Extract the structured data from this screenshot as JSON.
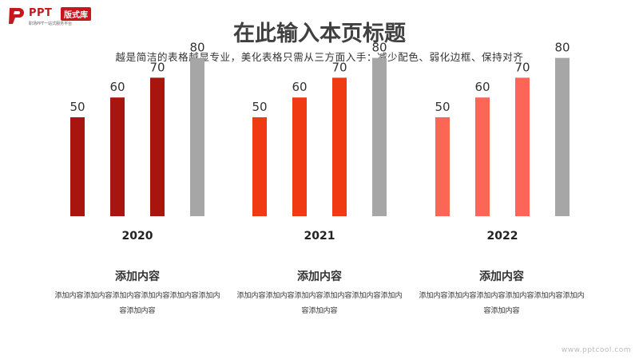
{
  "logo": {
    "ppt": "PPT",
    "badge": "版式库",
    "tagline": "职场PPT一站式服务平台"
  },
  "header": {
    "title": "在此输入本页标题",
    "subtitle": "越是简洁的表格越显专业，美化表格只需从三方面入手：减少配色、弱化边框、保持对齐"
  },
  "chart_data": [
    {
      "type": "bar",
      "xlabel": "2020",
      "values": [
        50,
        60,
        70,
        80
      ],
      "ylim": [
        0,
        100
      ],
      "colors": [
        "#a8150f",
        "#a8150f",
        "#a8150f",
        "#a6a6a6"
      ]
    },
    {
      "type": "bar",
      "xlabel": "2021",
      "values": [
        50,
        60,
        70,
        80
      ],
      "ylim": [
        0,
        100
      ],
      "colors": [
        "#f03a12",
        "#f03a12",
        "#f03a12",
        "#a6a6a6"
      ]
    },
    {
      "type": "bar",
      "xlabel": "2022",
      "values": [
        50,
        60,
        70,
        80
      ],
      "ylim": [
        0,
        100
      ],
      "colors": [
        "#fb6656",
        "#fb6656",
        "#fb6656",
        "#a6a6a6"
      ]
    }
  ],
  "blocks": [
    {
      "title": "添加内容",
      "desc": "添加内容添加内容添加内容添加内容添加内容添加内容添加内容"
    },
    {
      "title": "添加内容",
      "desc": "添加内容添加内容添加内容添加内容添加内容添加内容添加内容"
    },
    {
      "title": "添加内容",
      "desc": "添加内容添加内容添加内容添加内容添加内容添加内容添加内容"
    }
  ],
  "watermark": "www.pptcool.com"
}
